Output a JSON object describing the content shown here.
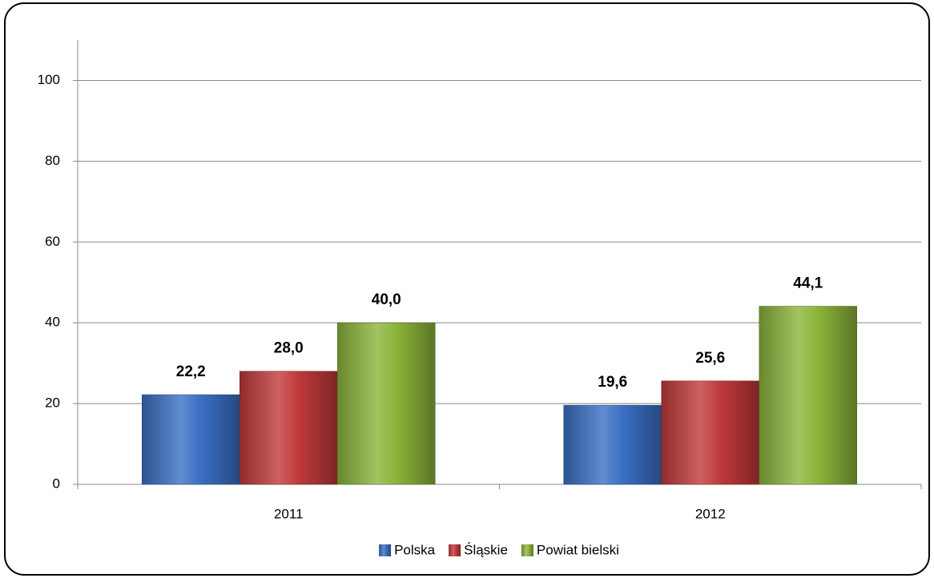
{
  "chart_data": {
    "type": "bar",
    "categories": [
      "2011",
      "2012"
    ],
    "series": [
      {
        "name": "Polska",
        "color": "#3a6fc4",
        "values": [
          22.2,
          19.6
        ],
        "value_labels": [
          "22,2",
          "19,6"
        ]
      },
      {
        "name": "Śląskie",
        "color": "#c0393a",
        "values": [
          28.0,
          25.6
        ],
        "value_labels": [
          "28,0",
          "25,6"
        ]
      },
      {
        "name": "Powiat bielski",
        "color": "#8cb43a",
        "values": [
          40.0,
          44.1
        ],
        "value_labels": [
          "40,0",
          "44,1"
        ]
      }
    ],
    "ylim": [
      0,
      110
    ],
    "yticks": [
      0,
      20,
      40,
      60,
      80,
      100
    ],
    "grid": true,
    "legend": "bottom"
  }
}
